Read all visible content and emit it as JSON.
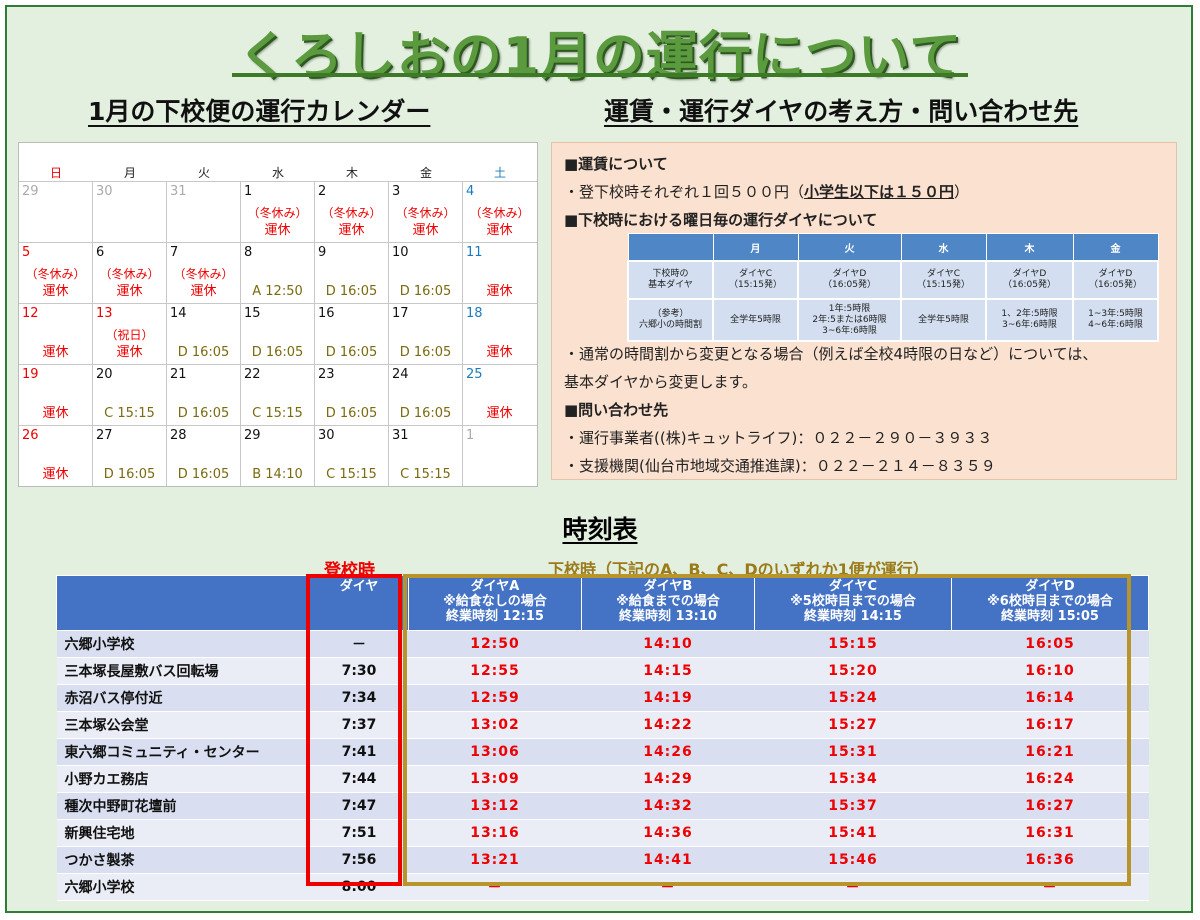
{
  "title": "くろしおの1月の運行について",
  "calendar_title": "1月の下校便の運行カレンダー",
  "info_title": "運賃・運行ダイヤの考え方・問い合わせ先",
  "weekdays": [
    "日",
    "月",
    "火",
    "水",
    "木",
    "金",
    "土"
  ],
  "calendar_weeks": [
    [
      {
        "d": "29",
        "c": "gray"
      },
      {
        "d": "30",
        "c": "gray"
      },
      {
        "d": "31",
        "c": "gray"
      },
      {
        "d": "1",
        "note": "（冬休み）",
        "stat": "運休",
        "sc": "red"
      },
      {
        "d": "2",
        "note": "（冬休み）",
        "stat": "運休",
        "sc": "red"
      },
      {
        "d": "3",
        "note": "（冬休み）",
        "stat": "運休",
        "sc": "red"
      },
      {
        "d": "4",
        "c": "blue",
        "note": "（冬休み）",
        "stat": "運休",
        "sc": "red"
      }
    ],
    [
      {
        "d": "5",
        "c": "red",
        "note": "（冬休み）",
        "stat": "運休",
        "sc": "red"
      },
      {
        "d": "6",
        "note": "（冬休み）",
        "stat": "運休",
        "sc": "red"
      },
      {
        "d": "7",
        "note": "（冬休み）",
        "stat": "運休",
        "sc": "red"
      },
      {
        "d": "8",
        "stat": "A 12:50",
        "sc": "olive"
      },
      {
        "d": "9",
        "stat": "D 16:05",
        "sc": "olive"
      },
      {
        "d": "10",
        "stat": "D 16:05",
        "sc": "olive"
      },
      {
        "d": "11",
        "c": "blue",
        "stat": "運休",
        "sc": "red"
      }
    ],
    [
      {
        "d": "12",
        "c": "red",
        "stat": "運休",
        "sc": "red"
      },
      {
        "d": "13",
        "c": "red",
        "note": "（祝日）",
        "stat": "運休",
        "sc": "red"
      },
      {
        "d": "14",
        "stat": "D 16:05",
        "sc": "olive"
      },
      {
        "d": "15",
        "stat": "D 16:05",
        "sc": "olive"
      },
      {
        "d": "16",
        "stat": "D 16:05",
        "sc": "olive"
      },
      {
        "d": "17",
        "stat": "D 16:05",
        "sc": "olive"
      },
      {
        "d": "18",
        "c": "blue",
        "stat": "運休",
        "sc": "red"
      }
    ],
    [
      {
        "d": "19",
        "c": "red",
        "stat": "運休",
        "sc": "red"
      },
      {
        "d": "20",
        "stat": "C 15:15",
        "sc": "olive"
      },
      {
        "d": "21",
        "stat": "D 16:05",
        "sc": "olive"
      },
      {
        "d": "22",
        "stat": "C 15:15",
        "sc": "olive"
      },
      {
        "d": "23",
        "stat": "D 16:05",
        "sc": "olive"
      },
      {
        "d": "24",
        "stat": "D 16:05",
        "sc": "olive"
      },
      {
        "d": "25",
        "c": "blue",
        "stat": "運休",
        "sc": "red"
      }
    ],
    [
      {
        "d": "26",
        "c": "red",
        "stat": "運休",
        "sc": "red"
      },
      {
        "d": "27",
        "stat": "D 16:05",
        "sc": "olive"
      },
      {
        "d": "28",
        "stat": "D 16:05",
        "sc": "olive"
      },
      {
        "d": "29",
        "stat": "B 14:10",
        "sc": "olive"
      },
      {
        "d": "30",
        "stat": "C 15:15",
        "sc": "olive"
      },
      {
        "d": "31",
        "stat": "C 15:15",
        "sc": "olive"
      },
      {
        "d": "1",
        "c": "gray"
      }
    ]
  ],
  "info": {
    "fare_head": "■運賃について",
    "fare_text_a": "・登下校時それぞれ１回５００円（",
    "fare_text_b": "小学生以下は１５０円",
    "fare_text_c": "）",
    "dia_head": "■下校時における曜日毎の運行ダイヤについて",
    "dia_table": {
      "headers": [
        "",
        "月",
        "火",
        "水",
        "木",
        "金"
      ],
      "row1": [
        "下校時の\n基本ダイヤ",
        "ダイヤC\n（15:15発）",
        "ダイヤD\n（16:05発）",
        "ダイヤC\n（15:15発）",
        "ダイヤD\n（16:05発）",
        "ダイヤD\n（16:05発）"
      ],
      "row2": [
        "（参考）\n六郷小の時間割",
        "全学年5時限",
        "1年:5時限\n2年:5または6時限\n3~6年:6時限",
        "全学年5時限",
        "1、2年:5時限\n3~6年:6時限",
        "1~3年:5時限\n4~6年:6時限"
      ]
    },
    "note1": "・通常の時間割から変更となる場合（例えば全校4時限の日など）については、",
    "note2": "基本ダイヤから変更します。",
    "contact_head": "■問い合わせ先",
    "contact1": "・運行事業者((株)キュットライフ)：０２２－２９０－３９３３",
    "contact2": "・支援機関(仙台市地域交通推進課)：０２２－２１４－８３５９"
  },
  "timetable": {
    "title": "時刻表",
    "label_up": "登校時",
    "label_down": "下校時（下記のA、B、C、Dのいずれか1便が運行）",
    "header_up": "ダイヤ",
    "headers_down": [
      [
        "ダイヤA",
        "※給食なしの場合",
        "終業時刻 12:15"
      ],
      [
        "ダイヤB",
        "※給食までの場合",
        "終業時刻 13:10"
      ],
      [
        "ダイヤC",
        "※5校時目までの場合",
        "終業時刻 14:15"
      ],
      [
        "ダイヤD",
        "※6校時目までの場合",
        "終業時刻 15:05"
      ]
    ],
    "rows": [
      {
        "stop": "六郷小学校",
        "up": "－",
        "a": "12:50",
        "b": "14:10",
        "c": "15:15",
        "d": "16:05"
      },
      {
        "stop": "三本塚長屋敷バス回転場",
        "up": "7:30",
        "a": "12:55",
        "b": "14:15",
        "c": "15:20",
        "d": "16:10"
      },
      {
        "stop": "赤沼バス停付近",
        "up": "7:34",
        "a": "12:59",
        "b": "14:19",
        "c": "15:24",
        "d": "16:14"
      },
      {
        "stop": "三本塚公会堂",
        "up": "7:37",
        "a": "13:02",
        "b": "14:22",
        "c": "15:27",
        "d": "16:17"
      },
      {
        "stop": "東六郷コミュニティ・センター",
        "up": "7:41",
        "a": "13:06",
        "b": "14:26",
        "c": "15:31",
        "d": "16:21"
      },
      {
        "stop": "小野カエ務店",
        "up": "7:44",
        "a": "13:09",
        "b": "14:29",
        "c": "15:34",
        "d": "16:24"
      },
      {
        "stop": "種次中野町花壇前",
        "up": "7:47",
        "a": "13:12",
        "b": "14:32",
        "c": "15:37",
        "d": "16:27"
      },
      {
        "stop": "新興住宅地",
        "up": "7:51",
        "a": "13:16",
        "b": "14:36",
        "c": "15:41",
        "d": "16:31"
      },
      {
        "stop": "つかさ製茶",
        "up": "7:56",
        "a": "13:21",
        "b": "14:41",
        "c": "15:46",
        "d": "16:36"
      },
      {
        "stop": "六郷小学校",
        "up": "8:00",
        "a": "－",
        "b": "－",
        "c": "－",
        "d": "－"
      }
    ]
  }
}
